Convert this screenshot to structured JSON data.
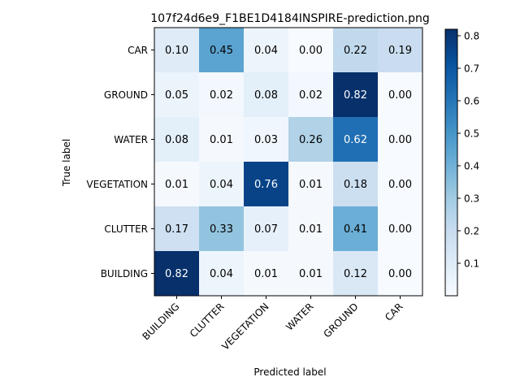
{
  "chart_data": {
    "type": "heatmap",
    "title": "107f24d6e9_F1BE1D4184INSPIRE-prediction.png",
    "xlabel": "Predicted label",
    "ylabel": "True label",
    "x_categories": [
      "BUILDING",
      "CLUTTER",
      "VEGETATION",
      "WATER",
      "GROUND",
      "CAR"
    ],
    "y_categories": [
      "CAR",
      "GROUND",
      "WATER",
      "VEGETATION",
      "CLUTTER",
      "BUILDING"
    ],
    "values": [
      [
        0.1,
        0.45,
        0.04,
        0.0,
        0.22,
        0.19
      ],
      [
        0.05,
        0.02,
        0.08,
        0.02,
        0.82,
        0.0
      ],
      [
        0.08,
        0.01,
        0.03,
        0.26,
        0.62,
        0.0
      ],
      [
        0.01,
        0.04,
        0.76,
        0.01,
        0.18,
        0.0
      ],
      [
        0.17,
        0.33,
        0.07,
        0.01,
        0.41,
        0.0
      ],
      [
        0.82,
        0.04,
        0.01,
        0.01,
        0.12,
        0.0
      ]
    ],
    "cell_labels": [
      [
        "0.10",
        "0.45",
        "0.04",
        "0.00",
        "0.22",
        "0.19"
      ],
      [
        "0.05",
        "0.02",
        "0.08",
        "0.02",
        "0.82",
        "0.00"
      ],
      [
        "0.08",
        "0.01",
        "0.03",
        "0.26",
        "0.62",
        "0.00"
      ],
      [
        "0.01",
        "0.04",
        "0.76",
        "0.01",
        "0.18",
        "0.00"
      ],
      [
        "0.17",
        "0.33",
        "0.07",
        "0.01",
        "0.41",
        "0.00"
      ],
      [
        "0.82",
        "0.04",
        "0.01",
        "0.01",
        "0.12",
        "0.00"
      ]
    ],
    "colormap": "Blues",
    "colorbar": {
      "min": 0.0,
      "max": 0.82,
      "ticks": [
        0.1,
        0.2,
        0.3,
        0.4,
        0.5,
        0.6,
        0.7,
        0.8
      ],
      "tick_labels": [
        "0.1",
        "0.2",
        "0.3",
        "0.4",
        "0.5",
        "0.6",
        "0.7",
        "0.8"
      ]
    }
  }
}
